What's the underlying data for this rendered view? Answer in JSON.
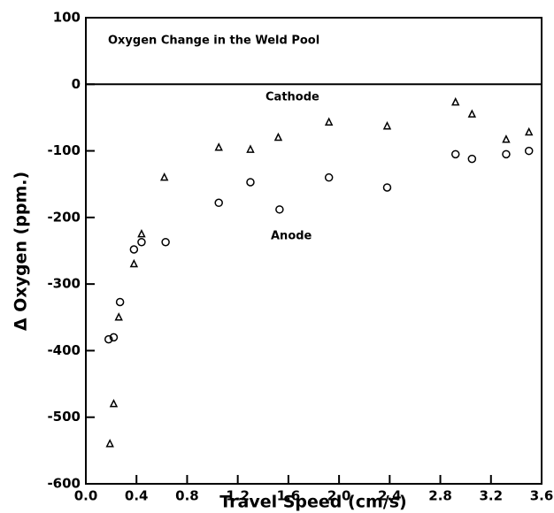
{
  "chart_data": {
    "type": "scatter",
    "title": "Oxygen Change in the Weld Pool",
    "x_label": "Travel Speed (cm/s)",
    "y_label": "Δ Oxygen (ppm.)",
    "xlim": [
      0,
      3.6
    ],
    "ylim": [
      -600,
      100
    ],
    "xticks": [
      {
        "value": 0,
        "label": "0.0"
      },
      0.4,
      0.8,
      1.2,
      1.6,
      {
        "value": 2,
        "label": "2.0"
      },
      2.4,
      2.8,
      3.2,
      3.6
    ],
    "yticks": [
      -600,
      -500,
      -400,
      -300,
      -200,
      -100,
      0,
      100
    ],
    "series": [
      {
        "name": "Cathode",
        "color": "#000000",
        "marker": "triangle",
        "x": [
          0.19,
          0.22,
          0.26,
          0.38,
          0.44,
          0.62,
          1.05,
          1.3,
          1.52,
          1.92,
          2.38,
          2.92,
          3.05,
          3.32,
          3.5
        ],
        "values": [
          -540,
          -480,
          -350,
          -270,
          -225,
          -140,
          -95,
          -98,
          -80,
          -57,
          -63,
          -27,
          -45,
          -83,
          -72
        ]
      },
      {
        "name": "Anode",
        "color": "#000000",
        "marker": "circle",
        "x": [
          0.18,
          0.22,
          0.27,
          0.38,
          0.44,
          0.63,
          1.05,
          1.3,
          1.53,
          1.92,
          2.38,
          2.92,
          3.05,
          3.32,
          3.5
        ],
        "values": [
          -383,
          -380,
          -327,
          -248,
          -237,
          -237,
          -178,
          -147,
          -188,
          -140,
          -155,
          -105,
          -112,
          -105,
          -100
        ]
      }
    ]
  }
}
